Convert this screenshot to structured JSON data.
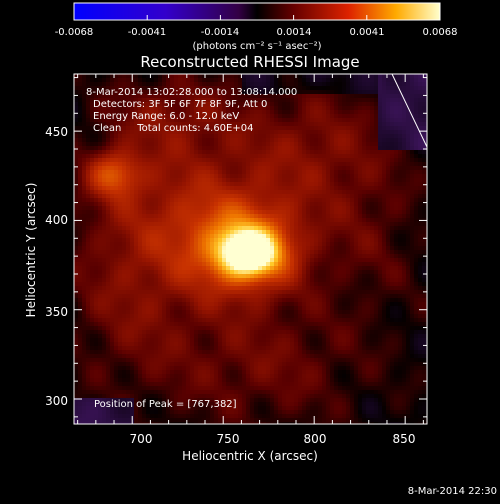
{
  "chart_data": {
    "type": "heatmap",
    "title": "Reconstructed RHESSI Image",
    "xlabel": "Heliocentric X (arcsec)",
    "ylabel": "Heliocentric Y (arcsec)",
    "xlim": [
      668,
      862
    ],
    "ylim": [
      286,
      482
    ],
    "xticks": [
      700,
      750,
      800,
      850
    ],
    "yticks": [
      300,
      350,
      400,
      450
    ],
    "colorbar": {
      "ticks": [
        "-0.0068",
        "-0.0041",
        "-0.0014",
        "0.0014",
        "0.0041",
        "0.0068"
      ],
      "range": [
        -0.0068,
        0.0068
      ],
      "unit_label": "(photons cm⁻² s⁻¹ asec⁻²)"
    },
    "annotations": [
      "8-Mar-2014 13:02:28.000 to 13:08:14.000",
      "Detectors: 3F 5F 6F 7F 8F 9F, Att 0",
      "Energy Range: 6.0 - 12.0 keV",
      "Clean     Total counts: 4.60E+04"
    ],
    "peak_label": "Position of Peak = [767,382]",
    "peak": [
      767,
      382
    ],
    "sources": [
      {
        "x": 764,
        "y": 382,
        "amp": 1.0,
        "sx": 10,
        "sy": 8
      },
      {
        "x": 762,
        "y": 384,
        "amp": 0.55,
        "sx": 22,
        "sy": 18
      },
      {
        "x": 690,
        "y": 426,
        "amp": 0.38,
        "sx": 10,
        "sy": 9
      },
      {
        "x": 730,
        "y": 410,
        "amp": 0.22,
        "sx": 35,
        "sy": 30
      },
      {
        "x": 800,
        "y": 440,
        "amp": 0.18,
        "sx": 30,
        "sy": 25
      },
      {
        "x": 700,
        "y": 360,
        "amp": 0.16,
        "sx": 25,
        "sy": 35
      },
      {
        "x": 770,
        "y": 320,
        "amp": 0.15,
        "sx": 40,
        "sy": 25
      },
      {
        "x": 720,
        "y": 460,
        "amp": 0.15,
        "sx": 25,
        "sy": 15
      },
      {
        "x": 830,
        "y": 390,
        "amp": 0.1,
        "sx": 20,
        "sy": 30
      }
    ],
    "footer_timestamp": "8-Mar-2014 22:30"
  }
}
